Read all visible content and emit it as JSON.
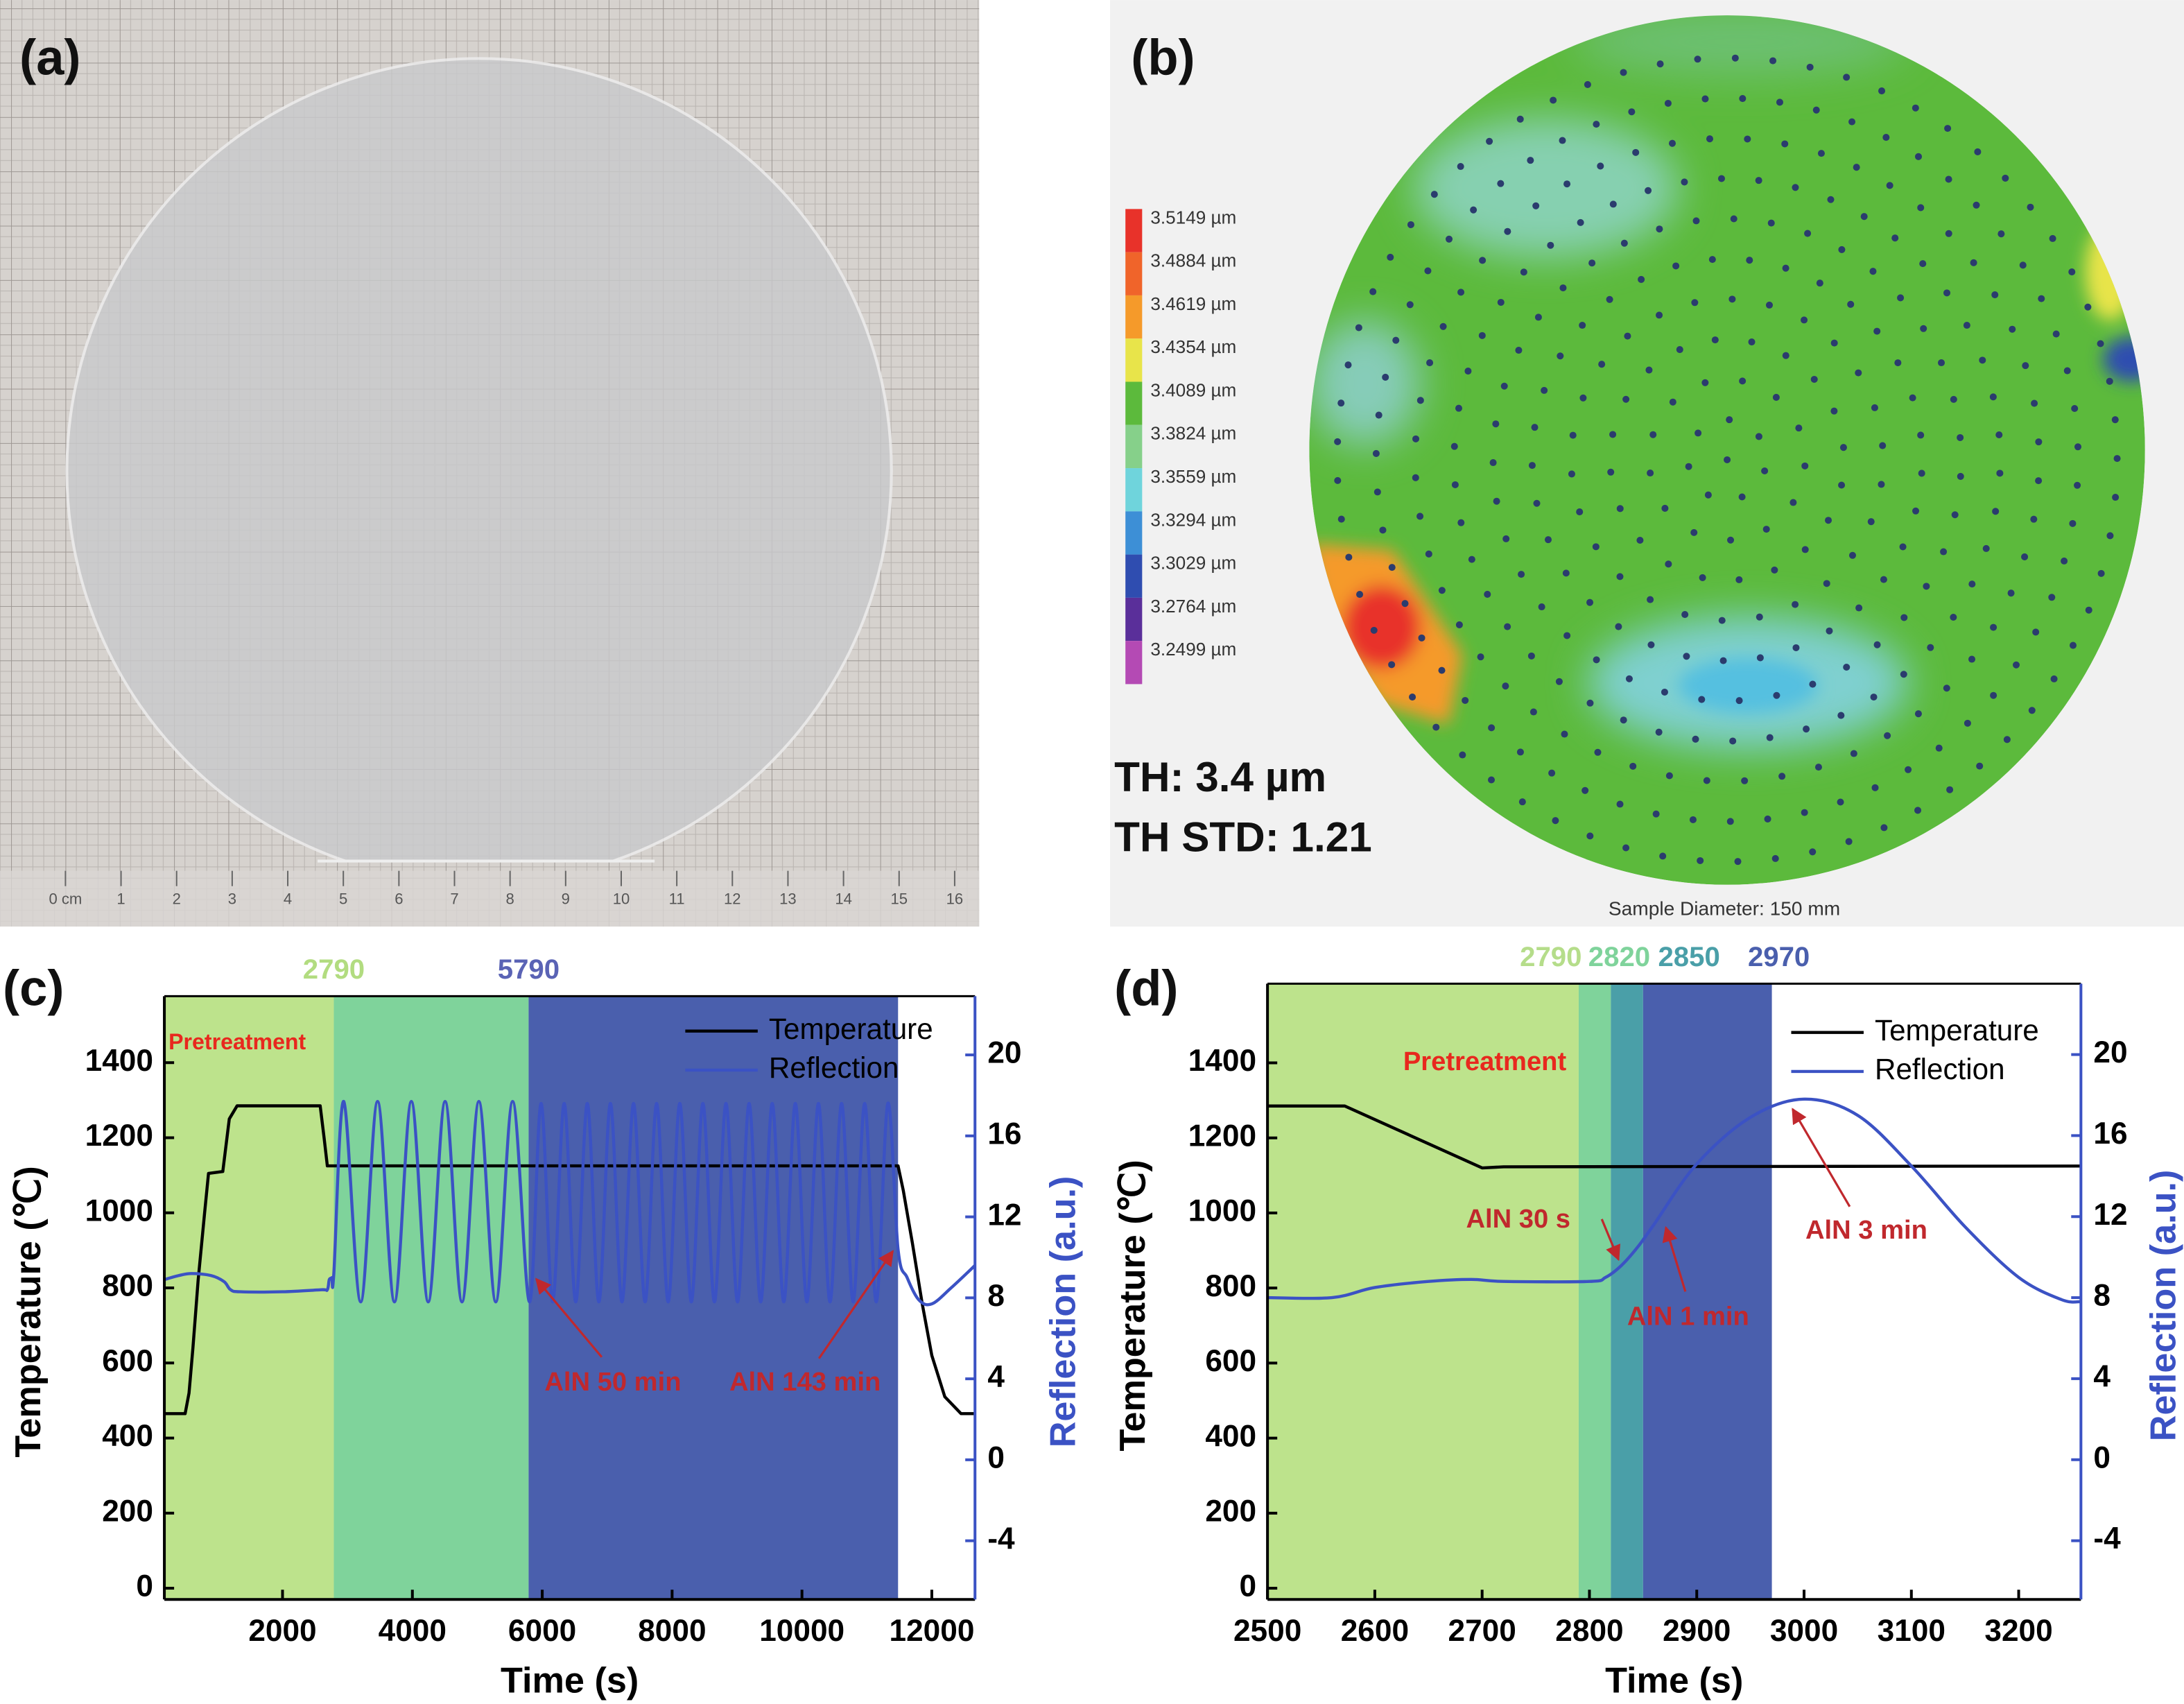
{
  "panel_labels": [
    "(a)",
    "(b)",
    "(c)",
    "(d)"
  ],
  "panel_a": {
    "ruler_labels": [
      "0 cm",
      1,
      2,
      3,
      4,
      5,
      6,
      7,
      8,
      9,
      10,
      11,
      12,
      13,
      14,
      15,
      16
    ]
  },
  "panel_b": {
    "colorbar": {
      "labels": [
        "3.5149 µm",
        "3.4884 µm",
        "3.4619 µm",
        "3.4354 µm",
        "3.4089 µm",
        "3.3824 µm",
        "3.3559 µm",
        "3.3294 µm",
        "3.3029 µm",
        "3.2764 µm",
        "3.2499 µm"
      ],
      "colors": [
        "#e8322a",
        "#f0642a",
        "#f59a2a",
        "#e8e44a",
        "#5cba3c",
        "#86d08a",
        "#6fd4dc",
        "#3d8fd6",
        "#2f4db0",
        "#5a2f9a",
        "#b44ab4"
      ]
    },
    "annotations": [
      "TH: 3.4 µm",
      "TH STD: 1.21"
    ],
    "footer": "Sample Diameter: 150 mm"
  },
  "chart_data": [
    {
      "type": "line",
      "x_label": "Time (s)",
      "y_label": "Temperature (℃)",
      "y2_label": "Reflection (a.u.)",
      "xlim": [
        180,
        12665
      ],
      "xticks": [
        2000,
        4000,
        6000,
        8000,
        10000,
        12000
      ],
      "ylim": [
        -30,
        1577
      ],
      "yticks": [
        0,
        200,
        400,
        600,
        800,
        1000,
        1200,
        1400
      ],
      "y2lim": [
        -6.9,
        22.9
      ],
      "y2ticks": [
        -4,
        0,
        4,
        8,
        12,
        16,
        20
      ],
      "y2_color": "#3b52c4",
      "legend": "upper right",
      "regions": [
        {
          "end": 2790,
          "color": "#bde38c",
          "end_label_color": "#b2dc80"
        },
        {
          "end": 5790,
          "color": "#7fd39b",
          "end_label_color": "#5a63b5"
        },
        {
          "end": 11480,
          "color": "#4a5fad"
        }
      ],
      "series": [
        {
          "name": "Temperature",
          "color": "#000000",
          "x": [
            180,
            500,
            560,
            620,
            700,
            800,
            860,
            1080,
            1180,
            1300,
            2580,
            2640,
            2690,
            11480,
            11560,
            11700,
            11850,
            12000,
            12200,
            12450,
            12665
          ],
          "values": [
            465,
            465,
            520,
            640,
            820,
            1000,
            1105,
            1110,
            1250,
            1285,
            1285,
            1200,
            1125,
            1125,
            1060,
            920,
            760,
            620,
            510,
            465,
            465
          ]
        },
        {
          "name": "Reflection",
          "color": "#3b52c4",
          "axis": "y2",
          "smooth": true,
          "x": [
            180,
            400,
            600,
            900,
            1100,
            1200,
            1350,
            2000,
            2600,
            2690,
            2720,
            2760,
            2790,
            2944,
            3204,
            3464,
            3724,
            3984,
            4244,
            4504,
            4764,
            5024,
            5284,
            5544,
            5804,
            5982,
            6160,
            6338,
            6516,
            6694,
            6872,
            7050,
            7228,
            7406,
            7584,
            7762,
            7940,
            8118,
            8296,
            8474,
            8652,
            8830,
            9008,
            9186,
            9364,
            9542,
            9720,
            9898,
            10076,
            10254,
            10432,
            10610,
            10788,
            10966,
            11144,
            11322,
            11480,
            11620,
            11800,
            12000,
            12300,
            12665
          ],
          "values": [
            8.9,
            9.1,
            9.2,
            9.1,
            8.8,
            8.4,
            8.3,
            8.3,
            8.4,
            8.4,
            8.9,
            9.0,
            9.2,
            17.7,
            7.8,
            17.7,
            7.8,
            17.7,
            7.8,
            17.7,
            7.8,
            17.7,
            7.8,
            17.7,
            7.8,
            17.6,
            7.8,
            17.6,
            7.8,
            17.6,
            7.8,
            17.6,
            7.8,
            17.6,
            7.8,
            17.6,
            7.8,
            17.6,
            7.8,
            17.6,
            7.8,
            17.6,
            7.8,
            17.6,
            7.8,
            17.6,
            7.8,
            17.6,
            7.8,
            17.6,
            7.8,
            17.6,
            7.8,
            17.6,
            7.8,
            17.6,
            10.4,
            9.0,
            7.9,
            7.7,
            8.5,
            9.6
          ]
        }
      ],
      "annotations": [
        {
          "text": "Pretreatment",
          "color": "#e8281e"
        },
        {
          "text": "AlN 50 min",
          "color": "#c0282d"
        },
        {
          "text": "AlN 143 min",
          "color": "#c0282d"
        }
      ]
    },
    {
      "type": "line",
      "x_label": "Time (s)",
      "y_label": "Temperature (℃)",
      "y2_label": "Reflection (a.u.)",
      "xlim": [
        2500,
        3258
      ],
      "xticks": [
        2500,
        2600,
        2700,
        2800,
        2900,
        3000,
        3100,
        3200
      ],
      "ylim": [
        -30,
        1611
      ],
      "yticks": [
        0,
        200,
        400,
        600,
        800,
        1000,
        1200,
        1400
      ],
      "y2lim": [
        -6.9,
        23.5
      ],
      "y2ticks": [
        -4,
        0,
        4,
        8,
        12,
        16,
        20
      ],
      "y2_color": "#3b52c4",
      "legend": "upper right",
      "regions": [
        {
          "end": 2790,
          "color": "#bde38c",
          "end_label_color": "#b5dd8a"
        },
        {
          "end": 2820,
          "color": "#7fd39b",
          "end_label_color": "#7fd39b"
        },
        {
          "end": 2850,
          "color": "#4a9fa8",
          "end_label_color": "#4a9fa8"
        },
        {
          "end": 2970,
          "color": "#4a5fad",
          "end_label_color": "#4a5fad"
        }
      ],
      "series": [
        {
          "name": "Temperature",
          "color": "#000000",
          "x": [
            2500,
            2572,
            2700,
            2720,
            3258
          ],
          "values": [
            1285,
            1285,
            1120,
            1123,
            1125
          ]
        },
        {
          "name": "Reflection",
          "color": "#3b52c4",
          "axis": "y2",
          "smooth": true,
          "x": [
            2500,
            2560,
            2600,
            2650,
            2690,
            2720,
            2800,
            2815,
            2830,
            2845,
            2860,
            2900,
            2950,
            3000,
            3050,
            3100,
            3150,
            3200,
            3240,
            3258
          ],
          "values": [
            8.0,
            8.0,
            8.5,
            8.8,
            8.9,
            8.8,
            8.8,
            9.0,
            9.6,
            10.5,
            11.6,
            14.6,
            16.9,
            17.8,
            17.0,
            14.5,
            11.5,
            9.0,
            7.9,
            7.8
          ]
        }
      ],
      "annotations": [
        {
          "text": "Pretreatment",
          "color": "#e8281e"
        },
        {
          "text": "AlN 30 s",
          "color": "#c0282d"
        },
        {
          "text": "AlN 1 min",
          "color": "#c0282d"
        },
        {
          "text": "AlN 3 min",
          "color": "#c0282d"
        }
      ]
    }
  ]
}
